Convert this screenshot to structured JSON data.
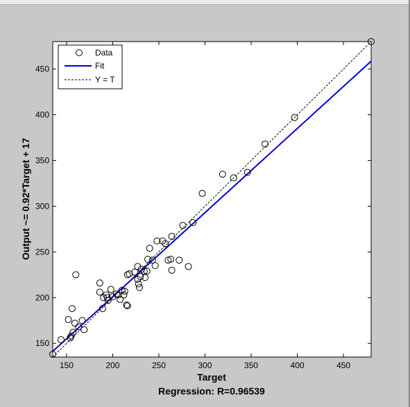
{
  "chart_data": {
    "type": "scatter",
    "title": "Regression: R=0.96539",
    "xlabel": "Target",
    "ylabel": "Output ~= 0.92*Target + 17",
    "xlim": [
      135,
      480
    ],
    "ylim": [
      135,
      480
    ],
    "xticks": [
      "150",
      "200",
      "250",
      "300",
      "350",
      "400",
      "450"
    ],
    "yticks": [
      "150",
      "200",
      "250",
      "300",
      "350",
      "400",
      "450"
    ],
    "grid": false,
    "legend_position": "top-left",
    "legend": [
      {
        "label": "Data",
        "style": "circle"
      },
      {
        "label": "Fit",
        "style": "solid",
        "color": "#0000d0"
      },
      {
        "label": "Y = T",
        "style": "dashed",
        "color": "#000000"
      }
    ],
    "fit": {
      "slope": 0.92,
      "intercept": 17
    },
    "series": [
      {
        "name": "Data",
        "marker": "circle",
        "points": [
          [
            135,
            138
          ],
          [
            144,
            154
          ],
          [
            152,
            176
          ],
          [
            154,
            156
          ],
          [
            155,
            158
          ],
          [
            156,
            188
          ],
          [
            157,
            162
          ],
          [
            159,
            172
          ],
          [
            160,
            225
          ],
          [
            163,
            168
          ],
          [
            167,
            175
          ],
          [
            169,
            165
          ],
          [
            186,
            216
          ],
          [
            186,
            206
          ],
          [
            189,
            188
          ],
          [
            190,
            200
          ],
          [
            193,
            203
          ],
          [
            194,
            200
          ],
          [
            195,
            197
          ],
          [
            198,
            209
          ],
          [
            200,
            201
          ],
          [
            204,
            204
          ],
          [
            206,
            203
          ],
          [
            208,
            198
          ],
          [
            210,
            208
          ],
          [
            212,
            203
          ],
          [
            213,
            207
          ],
          [
            215,
            192
          ],
          [
            216,
            225
          ],
          [
            216,
            191
          ],
          [
            218,
            226
          ],
          [
            224,
            228
          ],
          [
            227,
            234
          ],
          [
            227,
            220
          ],
          [
            228,
            215
          ],
          [
            229,
            211
          ],
          [
            230,
            223
          ],
          [
            231,
            231
          ],
          [
            234,
            229
          ],
          [
            235,
            222
          ],
          [
            237,
            229
          ],
          [
            238,
            242
          ],
          [
            240,
            254
          ],
          [
            243,
            241
          ],
          [
            246,
            235
          ],
          [
            248,
            262
          ],
          [
            254,
            262
          ],
          [
            257,
            259
          ],
          [
            260,
            241
          ],
          [
            263,
            242
          ],
          [
            264,
            267
          ],
          [
            264,
            230
          ],
          [
            272,
            241
          ],
          [
            276,
            279
          ],
          [
            282,
            234
          ],
          [
            287,
            282
          ],
          [
            297,
            314
          ],
          [
            319,
            335
          ],
          [
            331,
            331
          ],
          [
            346,
            337
          ],
          [
            365,
            368
          ],
          [
            397,
            397
          ],
          [
            480,
            480
          ]
        ]
      }
    ]
  }
}
